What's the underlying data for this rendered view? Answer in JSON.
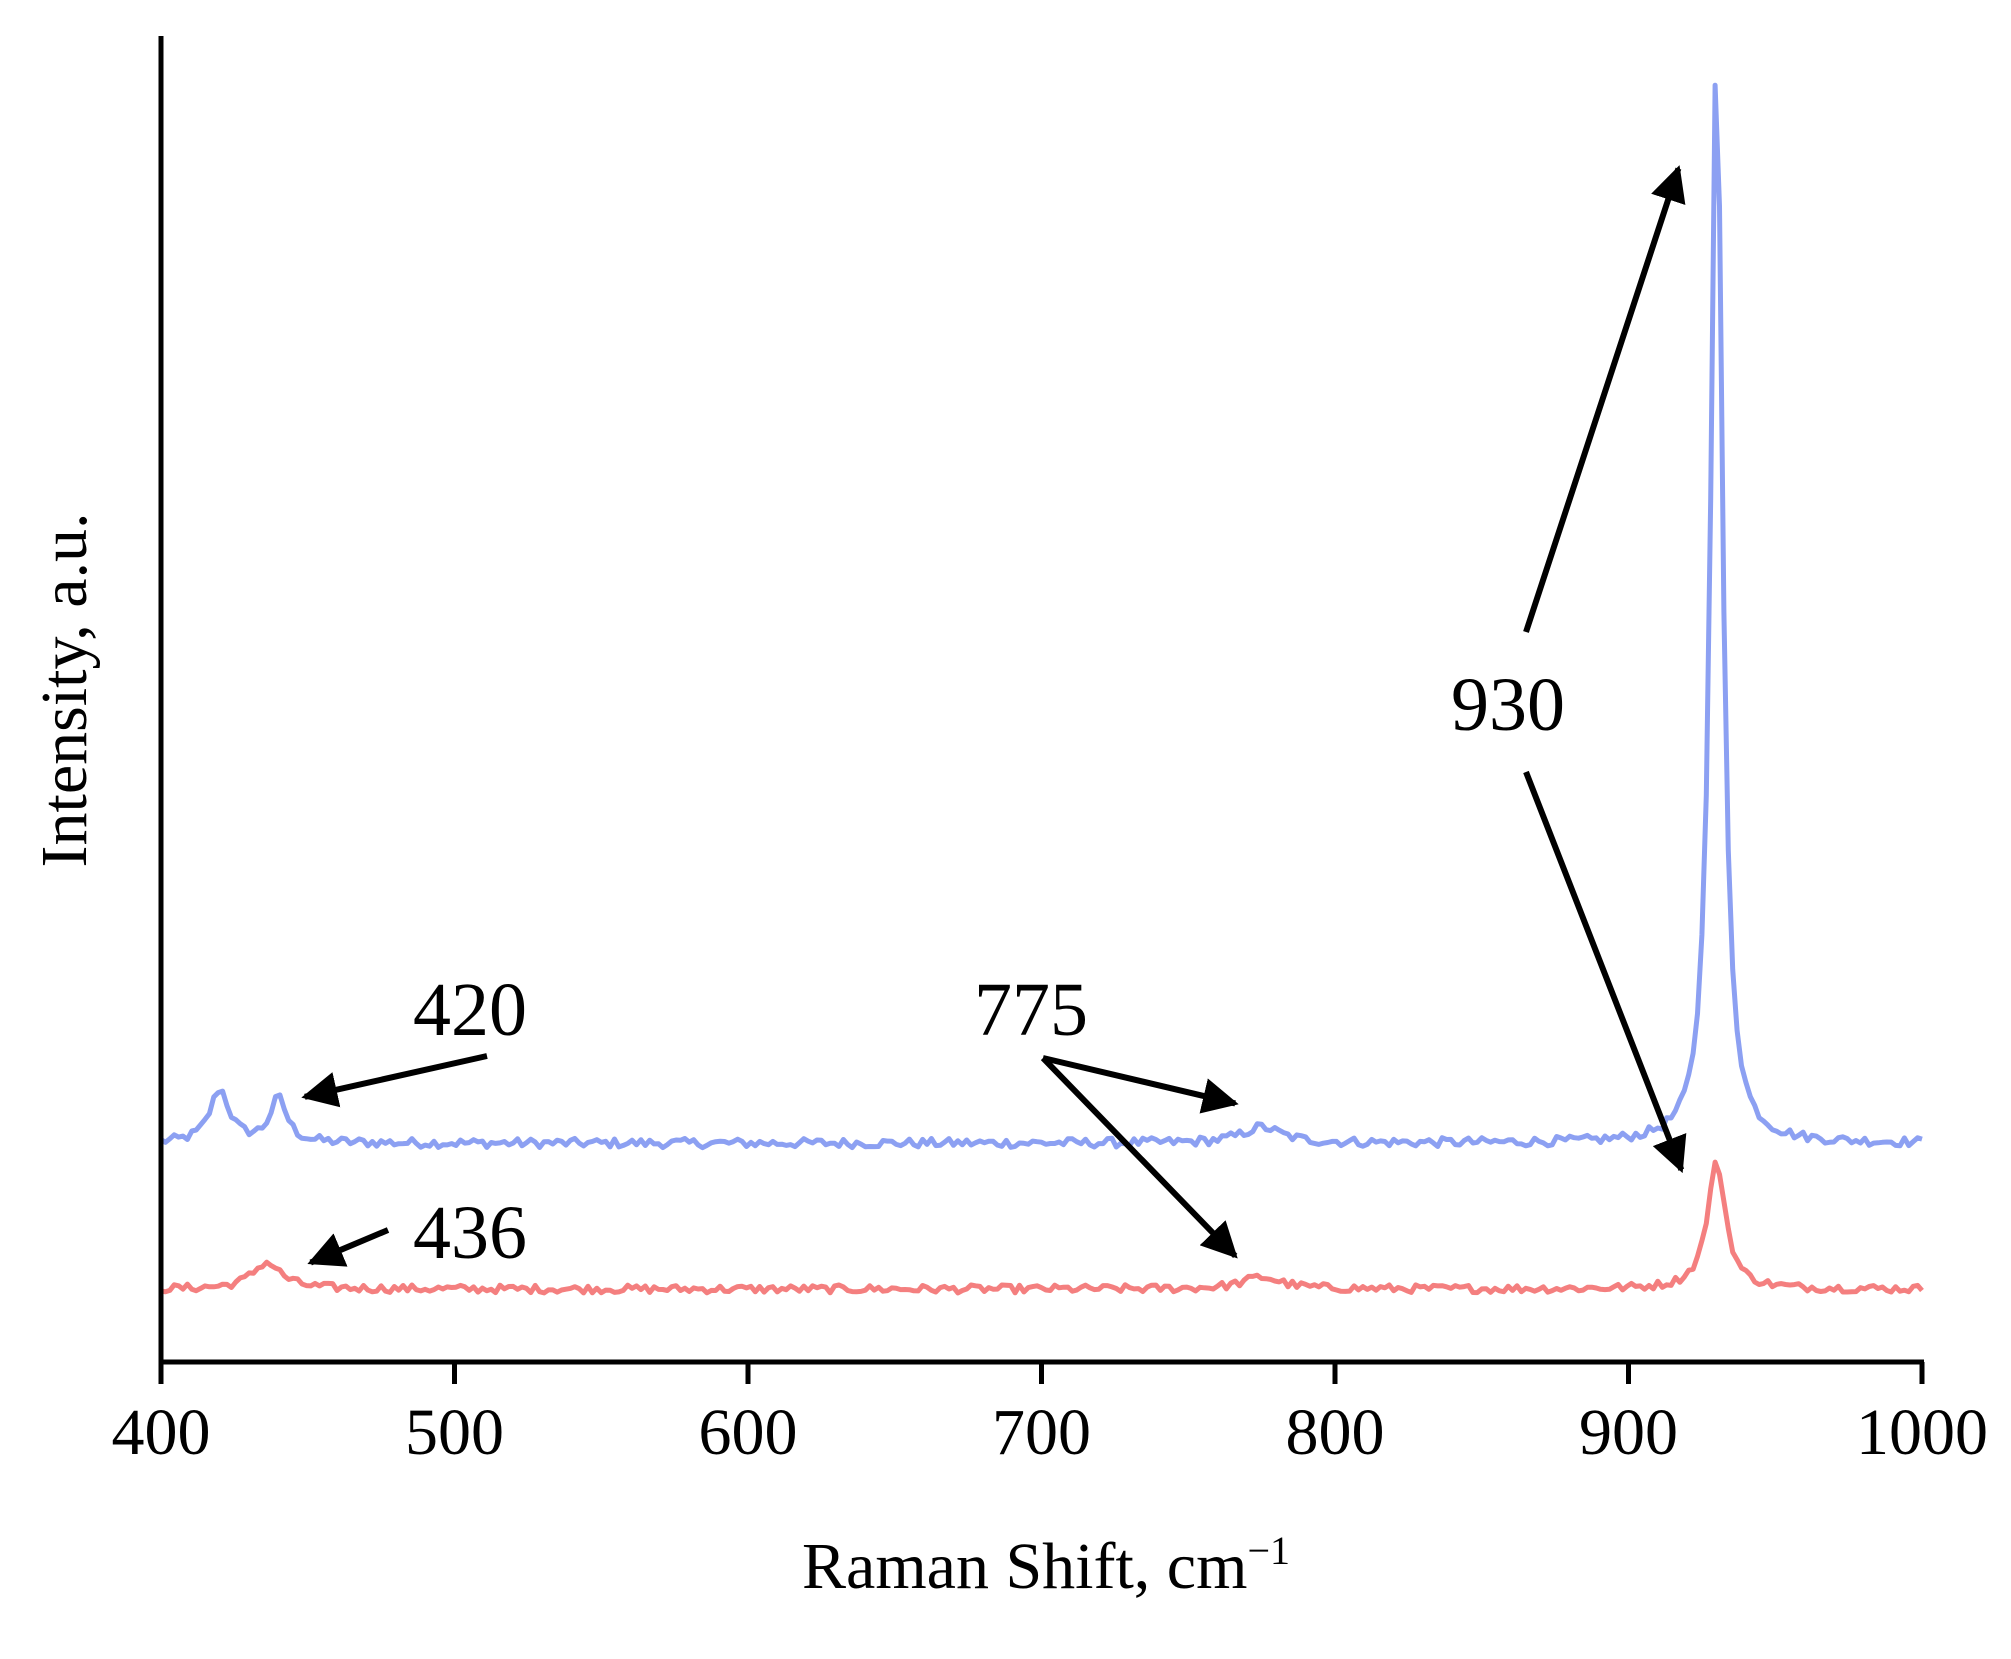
{
  "chart_data": {
    "type": "line",
    "title": "",
    "xlabel": "Raman Shift, cm",
    "xlabel_sup": "−1",
    "ylabel": "Intensity, a.u.",
    "xlim": [
      400,
      1000
    ],
    "ylim": [
      0,
      100
    ],
    "y_ticks_shown": false,
    "grid": false,
    "legend": "none",
    "x_ticks": [
      400,
      500,
      600,
      700,
      800,
      900,
      1000
    ],
    "x_tick_labels": [
      "400",
      "500",
      "600",
      "700",
      "800",
      "900",
      "1000"
    ],
    "series": [
      {
        "color": "#8ca0f2",
        "baseline": 16.5,
        "noise": 0.35,
        "peaks": [
          {
            "center": 420,
            "height": 4.0,
            "width": 4
          },
          {
            "center": 440,
            "height": 3.3,
            "width": 3.5
          },
          {
            "center": 775,
            "height": 1.2,
            "width": 8
          },
          {
            "center": 930,
            "height": 83,
            "width": 2.4
          }
        ]
      },
      {
        "color": "#f47f7f",
        "baseline": 5.5,
        "noise": 0.3,
        "peaks": [
          {
            "center": 436,
            "height": 2.0,
            "width": 6
          },
          {
            "center": 775,
            "height": 0.9,
            "width": 8
          },
          {
            "center": 930,
            "height": 9.5,
            "width": 3.8
          }
        ]
      }
    ],
    "annotations": [
      {
        "text": "420",
        "arrow_to": [
          449,
          20
        ]
      },
      {
        "text": "436",
        "arrow_to": [
          451,
          7.5
        ]
      },
      {
        "text": "775",
        "arrows_to": [
          [
            766,
            19.5
          ],
          [
            766,
            8.0
          ]
        ]
      },
      {
        "text": "930",
        "arrows_to": [
          [
            917,
            90
          ],
          [
            918,
            14.5
          ]
        ]
      }
    ]
  }
}
